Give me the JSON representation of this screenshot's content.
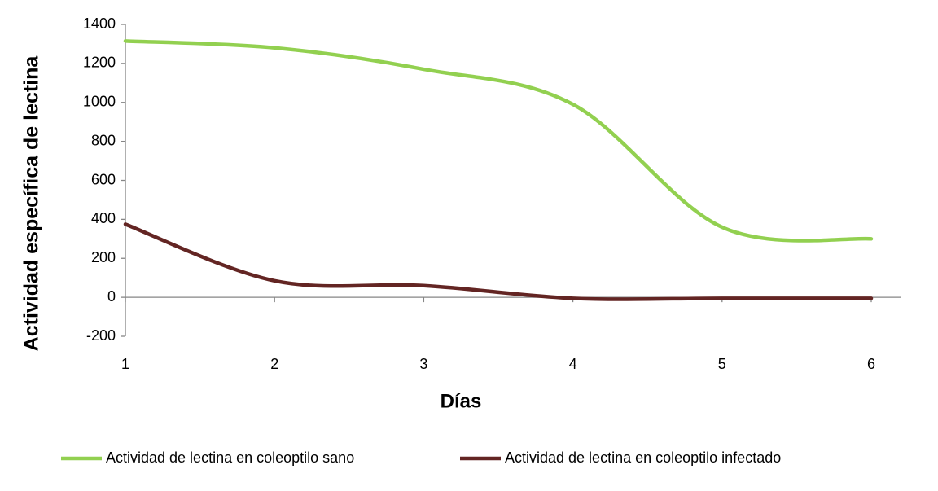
{
  "chart_data": {
    "type": "line",
    "x_label": "Días",
    "y_label": "Actividad específica de lectina",
    "x": [
      1,
      2,
      3,
      4,
      5,
      6
    ],
    "series": [
      {
        "name": "Actividad de lectina en coleoptilo sano",
        "color": "#92d050",
        "values": [
          1315,
          1280,
          1170,
          990,
          360,
          300
        ]
      },
      {
        "name": "Actividad de lectina en coleoptilo infectado",
        "color": "#632523",
        "values": [
          375,
          85,
          60,
          -5,
          -5,
          -5
        ]
      }
    ],
    "xlim": [
      1,
      6
    ],
    "xticks": [
      1,
      2,
      3,
      4,
      5,
      6
    ],
    "ylim": [
      -200,
      1400
    ],
    "yticks": [
      -200,
      0,
      200,
      400,
      600,
      800,
      1000,
      1200,
      1400
    ],
    "smooth": true
  }
}
